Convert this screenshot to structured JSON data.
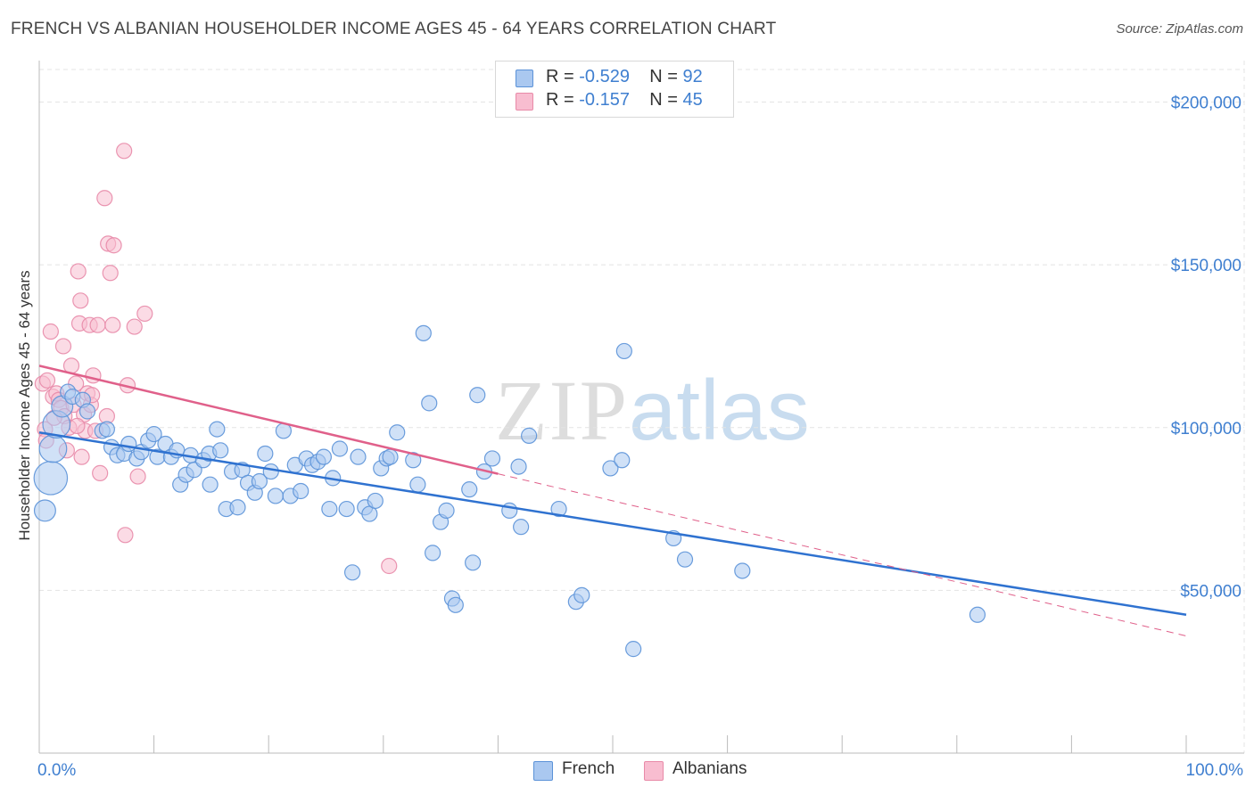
{
  "title": "FRENCH VS ALBANIAN HOUSEHOLDER INCOME AGES 45 - 64 YEARS CORRELATION CHART",
  "source": "Source: ZipAtlas.com",
  "watermark": {
    "zip": "ZIP",
    "atlas": "atlas"
  },
  "legend": {
    "rows": [
      {
        "r_label": "R = ",
        "r_value": "-0.529",
        "n_label": "N = ",
        "n_value": "92"
      },
      {
        "r_label": "R = ",
        "r_value": " -0.157",
        "n_label": "N = ",
        "n_value": "45"
      }
    ]
  },
  "colors": {
    "french_fill": "#aac8f0",
    "french_stroke": "#5b92d8",
    "french_line": "#2f72d0",
    "albanian_fill": "#f8bdd0",
    "albanian_stroke": "#e88aa8",
    "albanian_line": "#e0608a",
    "grid": "#e4e4e4",
    "axis_label": "#3f7fd0"
  },
  "chart_data": {
    "type": "scatter",
    "title": "FRENCH VS ALBANIAN HOUSEHOLDER INCOME AGES 45 - 64 YEARS CORRELATION CHART",
    "xlabel": "",
    "ylabel": "Householder Income Ages 45 - 64 years",
    "xlim": [
      0,
      100
    ],
    "ylim": [
      0,
      210000
    ],
    "x_tick_labels": [
      "0.0%",
      "100.0%"
    ],
    "y_ticks": [
      50000,
      100000,
      150000,
      200000
    ],
    "y_tick_labels": [
      "$50,000",
      "$100,000",
      "$150,000",
      "$200,000"
    ],
    "grid": true,
    "legend_position": "top-center",
    "series": [
      {
        "name": "French",
        "r": -0.529,
        "n": 92,
        "trend": {
          "x": [
            0,
            100
          ],
          "y": [
            98500,
            42500
          ],
          "solid_until": 100
        },
        "points": [
          [
            0.5,
            74500,
            1.4
          ],
          [
            1.0,
            84500,
            2.2
          ],
          [
            1.2,
            93500,
            1.8
          ],
          [
            1.5,
            101000,
            1.8
          ],
          [
            2.0,
            106500,
            1.4
          ],
          [
            2.5,
            111000,
            1.0
          ],
          [
            2.9,
            109500,
            1.0
          ],
          [
            3.8,
            108500,
            1.0
          ],
          [
            4.2,
            105000,
            1.0
          ],
          [
            5.5,
            99000,
            1.0
          ],
          [
            5.9,
            99500,
            1.0
          ],
          [
            6.3,
            94000,
            1.0
          ],
          [
            6.8,
            91500,
            1.0
          ],
          [
            7.4,
            92000,
            1.0
          ],
          [
            7.8,
            95000,
            1.0
          ],
          [
            8.5,
            90500,
            1.0
          ],
          [
            8.9,
            92500,
            1.0
          ],
          [
            9.5,
            96000,
            1.0
          ],
          [
            10.0,
            98000,
            1.0
          ],
          [
            10.3,
            91000,
            1.0
          ],
          [
            11.0,
            95000,
            1.0
          ],
          [
            11.5,
            91000,
            1.0
          ],
          [
            12.0,
            93000,
            1.0
          ],
          [
            12.3,
            82500,
            1.0
          ],
          [
            12.8,
            85500,
            1.0
          ],
          [
            13.2,
            91500,
            1.0
          ],
          [
            13.5,
            87000,
            1.0
          ],
          [
            14.3,
            90000,
            1.0
          ],
          [
            14.8,
            92000,
            1.0
          ],
          [
            14.9,
            82500,
            1.0
          ],
          [
            15.5,
            99500,
            1.0
          ],
          [
            15.8,
            93000,
            1.0
          ],
          [
            16.3,
            75000,
            1.0
          ],
          [
            16.8,
            86500,
            1.0
          ],
          [
            17.3,
            75500,
            1.0
          ],
          [
            17.7,
            87000,
            1.0
          ],
          [
            18.2,
            83000,
            1.0
          ],
          [
            18.8,
            80000,
            1.0
          ],
          [
            19.2,
            83500,
            1.0
          ],
          [
            19.7,
            92000,
            1.0
          ],
          [
            20.2,
            86500,
            1.0
          ],
          [
            20.6,
            79000,
            1.0
          ],
          [
            21.3,
            99000,
            1.0
          ],
          [
            21.9,
            79000,
            1.0
          ],
          [
            22.3,
            88500,
            1.0
          ],
          [
            22.8,
            80500,
            1.0
          ],
          [
            23.3,
            90500,
            1.0
          ],
          [
            23.8,
            88500,
            1.0
          ],
          [
            24.3,
            89500,
            1.0
          ],
          [
            24.8,
            91000,
            1.0
          ],
          [
            25.3,
            75000,
            1.0
          ],
          [
            25.6,
            84500,
            1.0
          ],
          [
            26.2,
            93500,
            1.0
          ],
          [
            26.8,
            75000,
            1.0
          ],
          [
            27.3,
            55500,
            1.0
          ],
          [
            27.8,
            91000,
            1.0
          ],
          [
            28.4,
            75500,
            1.0
          ],
          [
            28.8,
            73500,
            1.0
          ],
          [
            29.3,
            77500,
            1.0
          ],
          [
            29.8,
            87500,
            1.0
          ],
          [
            30.3,
            90500,
            1.0
          ],
          [
            30.6,
            91000,
            1.0
          ],
          [
            31.2,
            98500,
            1.0
          ],
          [
            32.6,
            90000,
            1.0
          ],
          [
            33.0,
            82500,
            1.0
          ],
          [
            33.5,
            129000,
            1.0
          ],
          [
            34.0,
            107500,
            1.0
          ],
          [
            34.3,
            61500,
            1.0
          ],
          [
            35.0,
            71000,
            1.0
          ],
          [
            35.5,
            74500,
            1.0
          ],
          [
            36.0,
            47500,
            1.0
          ],
          [
            36.3,
            45500,
            1.0
          ],
          [
            37.5,
            81000,
            1.0
          ],
          [
            37.8,
            58500,
            1.0
          ],
          [
            38.2,
            110000,
            1.0
          ],
          [
            38.8,
            86500,
            1.0
          ],
          [
            39.5,
            90500,
            1.0
          ],
          [
            41.0,
            74500,
            1.0
          ],
          [
            41.8,
            88000,
            1.0
          ],
          [
            42.0,
            69500,
            1.0
          ],
          [
            42.7,
            97500,
            1.0
          ],
          [
            45.3,
            75000,
            1.0
          ],
          [
            46.8,
            46500,
            1.0
          ],
          [
            47.3,
            48500,
            1.0
          ],
          [
            49.8,
            87500,
            1.0
          ],
          [
            50.8,
            90000,
            1.0
          ],
          [
            51.0,
            123500,
            1.0
          ],
          [
            51.8,
            32000,
            1.0
          ],
          [
            55.3,
            66000,
            1.0
          ],
          [
            56.3,
            59500,
            1.0
          ],
          [
            61.3,
            56000,
            1.0
          ],
          [
            81.8,
            42500,
            1.0
          ]
        ]
      },
      {
        "name": "Albanians",
        "r": -0.157,
        "n": 45,
        "trend": {
          "x": [
            0,
            100
          ],
          "y": [
            119000,
            36000
          ],
          "solid_until": 40
        },
        "points": [
          [
            0.3,
            113500,
            1.0
          ],
          [
            0.5,
            99500,
            1.0
          ],
          [
            0.6,
            96000,
            1.0
          ],
          [
            0.7,
            114500,
            1.0
          ],
          [
            1.0,
            129500,
            1.0
          ],
          [
            1.2,
            109500,
            1.0
          ],
          [
            1.5,
            110500,
            1.0
          ],
          [
            1.7,
            108500,
            1.0
          ],
          [
            1.9,
            106000,
            1.0
          ],
          [
            2.1,
            125000,
            1.0
          ],
          [
            2.2,
            103500,
            1.0
          ],
          [
            2.4,
            93000,
            1.0
          ],
          [
            2.6,
            100000,
            1.0
          ],
          [
            2.8,
            119000,
            1.0
          ],
          [
            3.0,
            107000,
            1.0
          ],
          [
            3.2,
            113500,
            1.0
          ],
          [
            3.4,
            148000,
            1.0
          ],
          [
            3.5,
            132000,
            1.0
          ],
          [
            3.6,
            139000,
            1.0
          ],
          [
            3.7,
            91000,
            1.0
          ],
          [
            3.9,
            104000,
            1.0
          ],
          [
            4.0,
            99000,
            1.0
          ],
          [
            4.2,
            110500,
            1.0
          ],
          [
            4.4,
            131500,
            1.0
          ],
          [
            4.5,
            107000,
            1.0
          ],
          [
            4.7,
            116000,
            1.0
          ],
          [
            4.9,
            99000,
            1.0
          ],
          [
            5.1,
            131500,
            1.0
          ],
          [
            5.3,
            86000,
            1.0
          ],
          [
            5.7,
            170500,
            1.0
          ],
          [
            5.9,
            103500,
            1.0
          ],
          [
            6.0,
            156500,
            1.0
          ],
          [
            6.2,
            147500,
            1.0
          ],
          [
            6.4,
            131500,
            1.0
          ],
          [
            6.5,
            156000,
            1.0
          ],
          [
            7.4,
            185000,
            1.0
          ],
          [
            7.5,
            67000,
            1.0
          ],
          [
            7.7,
            113000,
            1.0
          ],
          [
            8.3,
            131000,
            1.0
          ],
          [
            8.6,
            85000,
            1.0
          ],
          [
            9.2,
            135000,
            1.0
          ],
          [
            30.5,
            57500,
            1.0
          ],
          [
            1.3,
            103000,
            1.0
          ],
          [
            3.3,
            100500,
            1.0
          ],
          [
            4.6,
            110000,
            1.0
          ]
        ]
      }
    ]
  }
}
